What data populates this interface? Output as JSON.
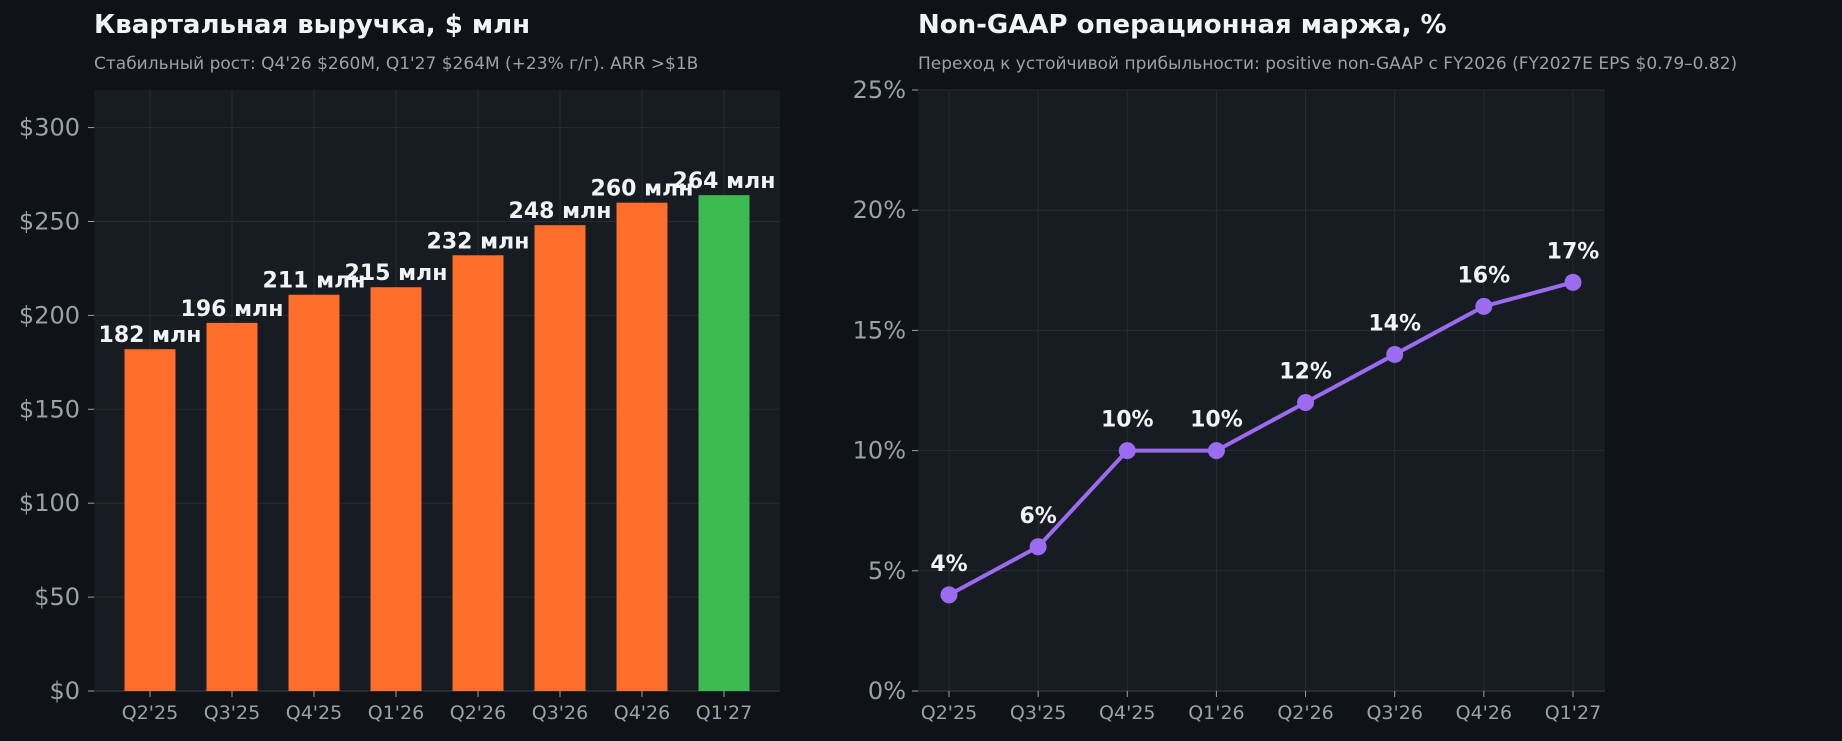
{
  "colors": {
    "bar": "#ff6d2a",
    "bar_highlight": "#3dba52",
    "line": "#9b6cf0",
    "plot_bg": "#171b22",
    "grid": "#272c35"
  },
  "chart_data": [
    {
      "type": "bar",
      "title": "Квартальная выручка, $ млн",
      "subtitle": "Стабильный рост: Q4'26 $260M, Q1'27 $264M (+23% г/г). ARR >$1B",
      "categories": [
        "Q2'25",
        "Q3'25",
        "Q4'25",
        "Q1'26",
        "Q2'26",
        "Q3'26",
        "Q4'26",
        "Q1'27"
      ],
      "values": [
        182,
        196,
        211,
        215,
        232,
        248,
        260,
        264
      ],
      "data_labels": [
        "182 млн",
        "196 млн",
        "211 млн",
        "215 млн",
        "232 млн",
        "248 млн",
        "260 млн",
        "264 млн"
      ],
      "highlight_index": 7,
      "ylim": [
        0,
        300
      ],
      "yticks": [
        0,
        50,
        100,
        150,
        200,
        250,
        300
      ],
      "ytick_labels": [
        "$0",
        "$50",
        "$100",
        "$150",
        "$200",
        "$250",
        "$300"
      ],
      "grid": true
    },
    {
      "type": "line",
      "title": "Non-GAAP операционная маржа, %",
      "subtitle": "Переход к устойчивой прибыльности: positive non-GAAP с FY2026 (FY2027E EPS $0.79–0.82)",
      "categories": [
        "Q2'25",
        "Q3'25",
        "Q4'25",
        "Q1'26",
        "Q2'26",
        "Q3'26",
        "Q4'26",
        "Q1'27"
      ],
      "values": [
        4,
        6,
        10,
        10,
        12,
        14,
        16,
        17
      ],
      "data_labels": [
        "4%",
        "6%",
        "10%",
        "10%",
        "12%",
        "14%",
        "16%",
        "17%"
      ],
      "ylim": [
        0,
        25
      ],
      "yticks": [
        0,
        5,
        10,
        15,
        20,
        25
      ],
      "ytick_labels": [
        "0%",
        "5%",
        "10%",
        "15%",
        "20%",
        "25%"
      ],
      "grid": true
    }
  ]
}
